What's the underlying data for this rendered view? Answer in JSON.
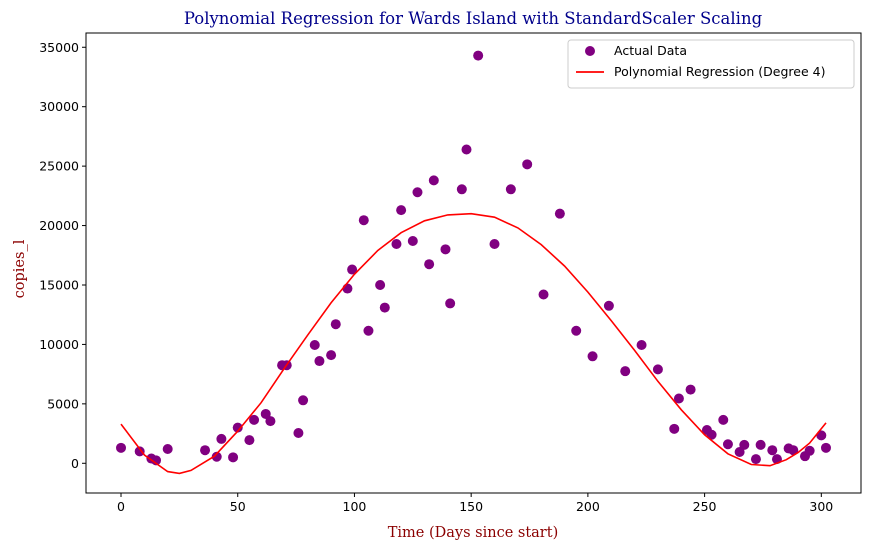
{
  "colors": {
    "title": "#00008b",
    "axis_labels": "#8b0000",
    "points": "#800080",
    "curve": "#ff0000"
  },
  "chart_data": {
    "type": "scatter",
    "title": "Polynomial Regression for Wards Island with StandardScaler Scaling",
    "xlabel": "Time (Days since start)",
    "ylabel": "copies_l",
    "xlim": [
      -15,
      317
    ],
    "ylim": [
      -2500,
      36200
    ],
    "xticks": [
      0,
      50,
      100,
      150,
      200,
      250,
      300
    ],
    "yticks": [
      0,
      5000,
      10000,
      15000,
      20000,
      25000,
      30000,
      35000
    ],
    "grid": false,
    "legend_placement": "top-right",
    "series": [
      {
        "name": "Actual Data",
        "kind": "scatter",
        "points": [
          [
            0,
            1300
          ],
          [
            8,
            1000
          ],
          [
            13,
            400
          ],
          [
            15,
            250
          ],
          [
            20,
            1200
          ],
          [
            36,
            1100
          ],
          [
            41,
            550
          ],
          [
            43,
            2050
          ],
          [
            48,
            500
          ],
          [
            50,
            3000
          ],
          [
            55,
            1950
          ],
          [
            57,
            3650
          ],
          [
            62,
            4150
          ],
          [
            64,
            3550
          ],
          [
            69,
            8250
          ],
          [
            71,
            8250
          ],
          [
            76,
            2550
          ],
          [
            78,
            5300
          ],
          [
            83,
            9950
          ],
          [
            85,
            8600
          ],
          [
            90,
            9100
          ],
          [
            92,
            11700
          ],
          [
            97,
            14700
          ],
          [
            99,
            16300
          ],
          [
            104,
            20450
          ],
          [
            106,
            11150
          ],
          [
            111,
            15000
          ],
          [
            113,
            13100
          ],
          [
            118,
            18450
          ],
          [
            120,
            21300
          ],
          [
            125,
            18700
          ],
          [
            127,
            22800
          ],
          [
            132,
            16750
          ],
          [
            134,
            23800
          ],
          [
            139,
            18000
          ],
          [
            141,
            13450
          ],
          [
            146,
            23050
          ],
          [
            148,
            26400
          ],
          [
            153,
            34300
          ],
          [
            160,
            18450
          ],
          [
            167,
            23050
          ],
          [
            174,
            25150
          ],
          [
            181,
            14200
          ],
          [
            188,
            21000
          ],
          [
            195,
            11150
          ],
          [
            202,
            9000
          ],
          [
            209,
            13250
          ],
          [
            216,
            7750
          ],
          [
            223,
            9950
          ],
          [
            230,
            7900
          ],
          [
            237,
            2900
          ],
          [
            239,
            5450
          ],
          [
            244,
            6200
          ],
          [
            251,
            2800
          ],
          [
            253,
            2400
          ],
          [
            258,
            3650
          ],
          [
            260,
            1600
          ],
          [
            265,
            950
          ],
          [
            267,
            1550
          ],
          [
            272,
            350
          ],
          [
            274,
            1550
          ],
          [
            279,
            1100
          ],
          [
            281,
            350
          ],
          [
            286,
            1250
          ],
          [
            288,
            1100
          ],
          [
            293,
            600
          ],
          [
            295,
            1050
          ],
          [
            300,
            2350
          ],
          [
            302,
            1300
          ]
        ]
      },
      {
        "name": "Polynomial Regression (Degree 4)",
        "kind": "line",
        "points": [
          [
            0,
            3300
          ],
          [
            10,
            700
          ],
          [
            20,
            -700
          ],
          [
            25,
            -850
          ],
          [
            30,
            -600
          ],
          [
            40,
            600
          ],
          [
            50,
            2700
          ],
          [
            60,
            5100
          ],
          [
            70,
            8000
          ],
          [
            80,
            10800
          ],
          [
            90,
            13500
          ],
          [
            100,
            15900
          ],
          [
            110,
            17900
          ],
          [
            120,
            19400
          ],
          [
            130,
            20400
          ],
          [
            140,
            20900
          ],
          [
            150,
            21000
          ],
          [
            160,
            20700
          ],
          [
            170,
            19800
          ],
          [
            180,
            18400
          ],
          [
            190,
            16600
          ],
          [
            200,
            14400
          ],
          [
            210,
            12000
          ],
          [
            220,
            9500
          ],
          [
            230,
            6900
          ],
          [
            240,
            4500
          ],
          [
            250,
            2400
          ],
          [
            260,
            800
          ],
          [
            270,
            -100
          ],
          [
            278,
            -200
          ],
          [
            285,
            300
          ],
          [
            290,
            900
          ],
          [
            295,
            1700
          ],
          [
            302,
            3400
          ]
        ]
      }
    ]
  }
}
